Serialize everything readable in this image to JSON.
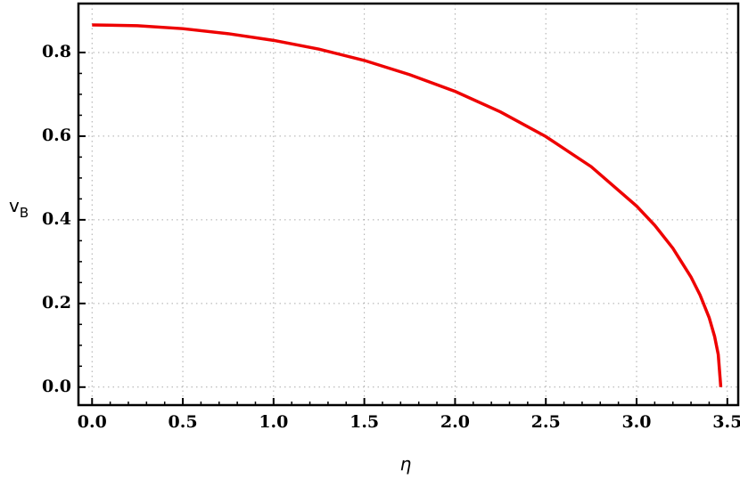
{
  "chart_data": {
    "type": "line",
    "x_label": "η",
    "y_label": "v",
    "y_label_subscript": "B",
    "series": [
      {
        "color": "#ee0000",
        "x": [
          0,
          0.25,
          0.5,
          0.75,
          1.0,
          1.25,
          1.5,
          1.75,
          2.0,
          2.25,
          2.5,
          2.75,
          3.0,
          3.1,
          3.2,
          3.3,
          3.35,
          3.4,
          3.43,
          3.45,
          3.464
        ],
        "values": [
          0.866,
          0.864,
          0.857,
          0.845,
          0.829,
          0.808,
          0.781,
          0.747,
          0.707,
          0.658,
          0.599,
          0.527,
          0.433,
          0.387,
          0.332,
          0.263,
          0.22,
          0.166,
          0.121,
          0.078,
          0
        ]
      }
    ],
    "xlim": [
      -0.075,
      3.56
    ],
    "ylim": [
      -0.043,
      0.917
    ],
    "xticks": [
      {
        "value": 0,
        "label": "0.0"
      },
      0.5,
      {
        "value": 1,
        "label": "1.0"
      },
      1.5,
      {
        "value": 2,
        "label": "2.0"
      },
      2.5,
      {
        "value": 3,
        "label": "3.0"
      },
      3.5
    ],
    "yticks": [
      {
        "value": 0,
        "label": "0.0"
      },
      0.2,
      0.4,
      0.6,
      0.8
    ],
    "grid": true
  }
}
